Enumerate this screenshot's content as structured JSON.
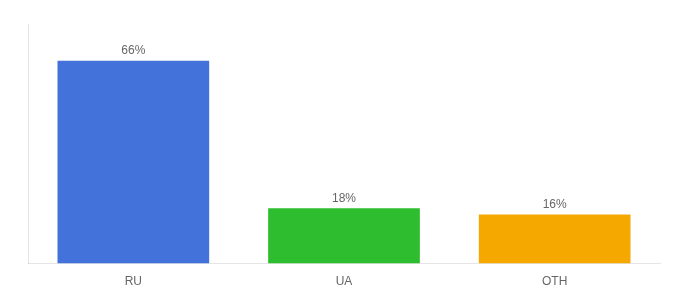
{
  "chart_data": {
    "type": "bar",
    "categories": [
      "RU",
      "UA",
      "OTH"
    ],
    "values": [
      66,
      18,
      16
    ],
    "value_labels": [
      "66%",
      "18%",
      "16%"
    ],
    "colors": [
      "#4472db",
      "#2ebd2e",
      "#f5a800"
    ],
    "ylim": [
      0,
      78
    ],
    "grid": false,
    "data_labels": true,
    "tick_labels": "x"
  }
}
